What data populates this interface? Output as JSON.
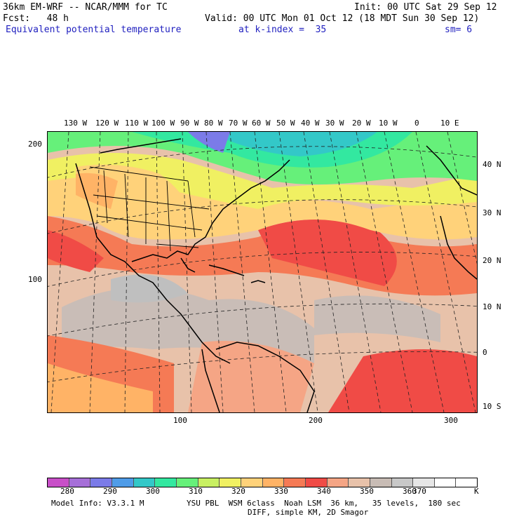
{
  "header": {
    "model": "36km EM-WRF -- NCAR/MMM for TC",
    "init": "Init: 00 UTC Sat 29 Sep 12",
    "fcst": "Fcst:   48 h",
    "valid": "Valid: 00 UTC Mon 01 Oct 12 (18 MDT Sun 30 Sep 12)",
    "field": "Equivalent potential temperature",
    "level": "at k-index =  35",
    "smooth": "sm= 6"
  },
  "top_lon_labels": [
    "130 W",
    "120 W",
    "110 W",
    "100 W",
    "90 W",
    "80 W",
    "70 W",
    "60 W",
    "50 W",
    "40 W",
    "30 W",
    "20 W",
    "10 W",
    "0",
    "10 E"
  ],
  "right_lat_labels": [
    "40 N",
    "30 N",
    "20 N",
    "10 N",
    "0",
    "10 S"
  ],
  "left_grid_labels": [
    "200",
    "100"
  ],
  "bottom_grid_labels": [
    "100",
    "200",
    "300"
  ],
  "colorbar": {
    "labels": [
      "280",
      "290",
      "300",
      "310",
      "320",
      "330",
      "340",
      "350",
      "360",
      "370"
    ],
    "unit": "K",
    "colors": [
      "#c84fc8",
      "#a66fd8",
      "#7b7be8",
      "#4f9ce8",
      "#33c8c8",
      "#33e8a0",
      "#66f07a",
      "#c8f062",
      "#f0f062",
      "#ffd27a",
      "#ffb366",
      "#f57a55",
      "#f04b46",
      "#f5a585",
      "#e8c2aa",
      "#c8bcb5",
      "#c8c8c8",
      "#e6e6e6",
      "#ffffff",
      "#ffffff"
    ]
  },
  "footer": {
    "line1_left": "Model Info: V3.3.1 M",
    "line1_right": "YSU PBL  WSM 6class  Noah LSM  36 km,   35 levels,  180 sec",
    "line2": "DIFF, simple KM, 2D Smagor"
  }
}
